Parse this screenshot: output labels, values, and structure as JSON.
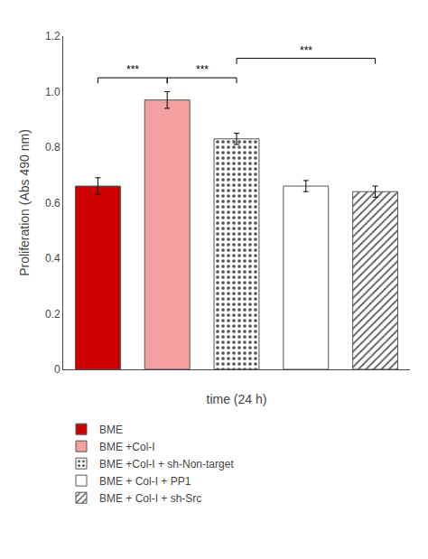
{
  "chart_data": {
    "type": "bar",
    "xlabel": "time (24 h)",
    "ylabel": "Proliferation (Abs 490 nm)",
    "categories": [
      null,
      null,
      null,
      null,
      null
    ],
    "series": [
      {
        "name": "BME",
        "color": "#cc0000",
        "values": [
          0.66,
          null,
          null,
          null,
          null
        ],
        "errors": [
          0.03,
          null,
          null,
          null,
          null
        ]
      },
      {
        "name": "BME +Col-I",
        "color": "#f4a0a0",
        "values": [
          null,
          0.97,
          null,
          null,
          null
        ],
        "errors": [
          null,
          0.03,
          null,
          null,
          null
        ]
      },
      {
        "name": "BME +Col-I + sh-Non-target",
        "color": "#d05555",
        "marker": "dots",
        "values": [
          null,
          null,
          0.83,
          null,
          null
        ],
        "errors": [
          null,
          null,
          0.02,
          null,
          null
        ]
      },
      {
        "name": "BME + Col-I + PP1",
        "color": "#ffffff",
        "values": [
          null,
          null,
          null,
          0.66,
          null
        ],
        "errors": [
          null,
          null,
          null,
          0.02,
          null
        ]
      },
      {
        "name": "BME + Col-I + sh-Src",
        "color": "#fff0f0",
        "marker": "hatch",
        "values": [
          null,
          null,
          null,
          null,
          0.64
        ],
        "errors": [
          null,
          null,
          null,
          null,
          0.02
        ]
      }
    ],
    "annotations": [
      {
        "x1": 0,
        "x2": 1,
        "y": 1.05,
        "text": "***"
      },
      {
        "x1": 1,
        "x2": 2,
        "y": 1.05,
        "text": "***"
      },
      {
        "x1": 2,
        "x2": 4,
        "y": 1.12,
        "text": "***"
      }
    ],
    "ylim": [
      0,
      1.2
    ],
    "yticks": [
      0,
      0.2,
      0.4,
      0.6,
      0.8,
      {
        "value": 1.0,
        "label": "1.0"
      },
      1.2
    ],
    "grid": false,
    "legend": "bottom",
    "tick_labels": "y"
  }
}
